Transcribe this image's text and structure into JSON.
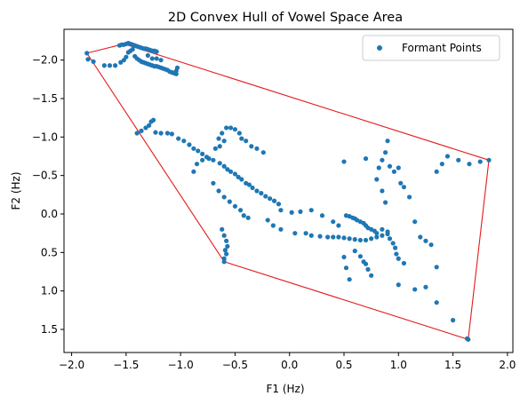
{
  "chart_data": {
    "type": "scatter",
    "title": "2D Convex Hull of Vowel Space Area",
    "xlabel": "F1 (Hz)",
    "ylabel": "F2 (Hz)",
    "xlim": [
      -2.07,
      2.05
    ],
    "ylim": [
      1.8,
      -2.4
    ],
    "y_inverted": true,
    "grid": false,
    "legend": {
      "placement": "top-right",
      "label": "Formant Points"
    },
    "x_ticks": [
      -2.0,
      -1.5,
      -1.0,
      -0.5,
      0.0,
      0.5,
      1.0,
      1.5,
      2.0
    ],
    "x_tick_labels": [
      "−2.0",
      "−1.5",
      "−1.0",
      "−0.5",
      "0.0",
      "0.5",
      "1.0",
      "1.5",
      "2.0"
    ],
    "y_ticks": [
      -2.0,
      -1.5,
      -1.0,
      -0.5,
      0.0,
      0.5,
      1.0,
      1.5
    ],
    "y_tick_labels": [
      "−2.0",
      "−1.5",
      "−1.0",
      "−0.5",
      "0.0",
      "0.5",
      "1.0",
      "1.5"
    ],
    "point_color": "#1f77b4",
    "hull_color": "#e31a1c",
    "points": [
      [
        -1.86,
        -2.09
      ],
      [
        -1.85,
        -2.01
      ],
      [
        -1.8,
        -1.98
      ],
      [
        -1.7,
        -1.93
      ],
      [
        -1.65,
        -1.93
      ],
      [
        -1.6,
        -1.93
      ],
      [
        -1.55,
        -1.97
      ],
      [
        -1.52,
        -2.0
      ],
      [
        -1.5,
        -2.04
      ],
      [
        -1.48,
        -2.1
      ],
      [
        -1.46,
        -2.12
      ],
      [
        -1.44,
        -2.14
      ],
      [
        -1.52,
        -2.2
      ],
      [
        -1.5,
        -2.21
      ],
      [
        -1.48,
        -2.22
      ],
      [
        -1.46,
        -2.21
      ],
      [
        -1.44,
        -2.2
      ],
      [
        -1.42,
        -2.19
      ],
      [
        -1.4,
        -2.18
      ],
      [
        -1.38,
        -2.17
      ],
      [
        -1.36,
        -2.16
      ],
      [
        -1.34,
        -2.15
      ],
      [
        -1.32,
        -2.15
      ],
      [
        -1.3,
        -2.14
      ],
      [
        -1.28,
        -2.13
      ],
      [
        -1.26,
        -2.12
      ],
      [
        -1.24,
        -2.12
      ],
      [
        -1.22,
        -2.11
      ],
      [
        -1.56,
        -2.19
      ],
      [
        -1.54,
        -2.2
      ],
      [
        -1.42,
        -2.05
      ],
      [
        -1.4,
        -2.02
      ],
      [
        -1.38,
        -2.0
      ],
      [
        -1.36,
        -1.98
      ],
      [
        -1.34,
        -1.97
      ],
      [
        -1.32,
        -1.96
      ],
      [
        -1.3,
        -1.95
      ],
      [
        -1.28,
        -1.94
      ],
      [
        -1.26,
        -1.93
      ],
      [
        -1.24,
        -1.92
      ],
      [
        -1.22,
        -1.92
      ],
      [
        -1.2,
        -1.91
      ],
      [
        -1.18,
        -1.9
      ],
      [
        -1.16,
        -1.89
      ],
      [
        -1.14,
        -1.88
      ],
      [
        -1.12,
        -1.87
      ],
      [
        -1.1,
        -1.85
      ],
      [
        -1.08,
        -1.84
      ],
      [
        -1.06,
        -1.83
      ],
      [
        -1.04,
        -1.82
      ],
      [
        -1.04,
        -1.86
      ],
      [
        -1.03,
        -1.9
      ],
      [
        -1.3,
        -2.06
      ],
      [
        -1.26,
        -2.02
      ],
      [
        -1.22,
        -2.02
      ],
      [
        -1.18,
        -2.0
      ],
      [
        -1.4,
        -1.05
      ],
      [
        -1.36,
        -1.08
      ],
      [
        -1.32,
        -1.12
      ],
      [
        -1.29,
        -1.15
      ],
      [
        -1.27,
        -1.2
      ],
      [
        -1.25,
        -1.22
      ],
      [
        -1.23,
        -1.06
      ],
      [
        -1.18,
        -1.05
      ],
      [
        -1.12,
        -1.05
      ],
      [
        -1.08,
        -1.04
      ],
      [
        -1.02,
        -0.98
      ],
      [
        -0.97,
        -0.95
      ],
      [
        -0.92,
        -0.9
      ],
      [
        -0.88,
        -0.85
      ],
      [
        -0.84,
        -0.82
      ],
      [
        -0.8,
        -0.78
      ],
      [
        -0.76,
        -0.74
      ],
      [
        -0.7,
        -0.7
      ],
      [
        -0.64,
        -0.66
      ],
      [
        -0.6,
        -0.62
      ],
      [
        -0.57,
        -0.58
      ],
      [
        -0.54,
        -0.55
      ],
      [
        -0.5,
        -0.52
      ],
      [
        -0.47,
        -0.48
      ],
      [
        -0.44,
        -0.45
      ],
      [
        -0.4,
        -0.4
      ],
      [
        -0.37,
        -0.38
      ],
      [
        -0.34,
        -0.34
      ],
      [
        -0.3,
        -0.3
      ],
      [
        -0.26,
        -0.27
      ],
      [
        -0.22,
        -0.23
      ],
      [
        -0.18,
        -0.2
      ],
      [
        -0.14,
        -0.17
      ],
      [
        -0.1,
        -0.13
      ],
      [
        -0.65,
        -0.98
      ],
      [
        -0.62,
        -1.05
      ],
      [
        -0.58,
        -1.12
      ],
      [
        -0.54,
        -1.12
      ],
      [
        -0.5,
        -1.1
      ],
      [
        -0.46,
        -1.05
      ],
      [
        -0.44,
        -0.98
      ],
      [
        -0.4,
        -0.95
      ],
      [
        -0.35,
        -0.88
      ],
      [
        -0.3,
        -0.85
      ],
      [
        -0.24,
        -0.8
      ],
      [
        -0.7,
        -0.4
      ],
      [
        -0.65,
        -0.3
      ],
      [
        -0.6,
        -0.22
      ],
      [
        -0.55,
        -0.16
      ],
      [
        -0.5,
        -0.1
      ],
      [
        -0.45,
        -0.05
      ],
      [
        -0.42,
        0.02
      ],
      [
        -0.38,
        0.05
      ],
      [
        -0.62,
        0.2
      ],
      [
        -0.6,
        0.28
      ],
      [
        -0.58,
        0.35
      ],
      [
        -0.57,
        0.42
      ],
      [
        -0.59,
        0.47
      ],
      [
        -0.58,
        0.52
      ],
      [
        -0.6,
        0.58
      ],
      [
        -0.6,
        0.62
      ],
      [
        -0.88,
        -0.55
      ],
      [
        -0.85,
        -0.65
      ],
      [
        -0.8,
        -0.7
      ],
      [
        -0.74,
        -0.72
      ],
      [
        -0.68,
        -0.85
      ],
      [
        -0.64,
        -0.88
      ],
      [
        -0.6,
        -0.95
      ],
      [
        -0.2,
        0.08
      ],
      [
        -0.15,
        0.15
      ],
      [
        -0.08,
        0.2
      ],
      [
        0.05,
        0.25
      ],
      [
        0.15,
        0.25
      ],
      [
        0.2,
        0.28
      ],
      [
        0.28,
        0.29
      ],
      [
        0.35,
        0.3
      ],
      [
        0.4,
        0.3
      ],
      [
        0.45,
        0.3
      ],
      [
        0.5,
        0.31
      ],
      [
        0.55,
        0.32
      ],
      [
        0.6,
        0.33
      ],
      [
        0.65,
        0.34
      ],
      [
        0.7,
        0.34
      ],
      [
        0.75,
        0.32
      ],
      [
        0.8,
        0.3
      ],
      [
        0.85,
        0.28
      ],
      [
        0.9,
        0.26
      ],
      [
        0.92,
        0.32
      ],
      [
        0.95,
        0.38
      ],
      [
        0.97,
        0.44
      ],
      [
        0.98,
        0.52
      ],
      [
        1.0,
        0.58
      ],
      [
        1.05,
        0.64
      ],
      [
        -0.08,
        -0.05
      ],
      [
        0.02,
        -0.02
      ],
      [
        0.1,
        -0.03
      ],
      [
        0.2,
        -0.05
      ],
      [
        0.3,
        0.02
      ],
      [
        0.4,
        0.1
      ],
      [
        0.45,
        0.15
      ],
      [
        0.52,
        0.02
      ],
      [
        0.55,
        0.03
      ],
      [
        0.58,
        0.05
      ],
      [
        0.6,
        0.06
      ],
      [
        0.62,
        0.08
      ],
      [
        0.65,
        0.1
      ],
      [
        0.68,
        0.12
      ],
      [
        0.7,
        0.15
      ],
      [
        0.72,
        0.18
      ],
      [
        0.75,
        0.2
      ],
      [
        0.78,
        0.22
      ],
      [
        0.8,
        0.25
      ],
      [
        0.6,
        0.48
      ],
      [
        0.65,
        0.55
      ],
      [
        0.68,
        0.62
      ],
      [
        0.7,
        0.65
      ],
      [
        0.72,
        0.72
      ],
      [
        0.75,
        0.8
      ],
      [
        0.55,
        0.85
      ],
      [
        0.52,
        0.7
      ],
      [
        0.5,
        0.56
      ],
      [
        0.85,
        0.2
      ],
      [
        0.9,
        0.23
      ],
      [
        0.88,
        -0.15
      ],
      [
        0.85,
        -0.3
      ],
      [
        0.8,
        -0.45
      ],
      [
        0.82,
        -0.6
      ],
      [
        0.85,
        -0.7
      ],
      [
        0.88,
        -0.8
      ],
      [
        0.9,
        -0.95
      ],
      [
        0.92,
        -0.62
      ],
      [
        0.96,
        -0.55
      ],
      [
        1.0,
        -0.6
      ],
      [
        1.02,
        -0.4
      ],
      [
        1.05,
        -0.35
      ],
      [
        1.1,
        -0.22
      ],
      [
        1.15,
        0.1
      ],
      [
        1.2,
        0.3
      ],
      [
        1.25,
        0.35
      ],
      [
        1.3,
        0.4
      ],
      [
        1.35,
        -0.55
      ],
      [
        1.4,
        -0.65
      ],
      [
        1.45,
        -0.75
      ],
      [
        1.55,
        -0.7
      ],
      [
        1.65,
        -0.65
      ],
      [
        1.75,
        -0.68
      ],
      [
        1.83,
        -0.7
      ],
      [
        0.5,
        -0.68
      ],
      [
        0.7,
        -0.72
      ],
      [
        1.0,
        0.92
      ],
      [
        1.15,
        0.98
      ],
      [
        1.25,
        0.95
      ],
      [
        1.35,
        1.15
      ],
      [
        1.35,
        0.69
      ],
      [
        1.5,
        1.38
      ],
      [
        1.63,
        1.62
      ],
      [
        1.64,
        1.63
      ]
    ],
    "hull": [
      [
        -1.86,
        -2.09
      ],
      [
        -1.52,
        -2.21
      ],
      [
        1.83,
        -0.7
      ],
      [
        1.64,
        1.63
      ],
      [
        -0.6,
        0.62
      ],
      [
        -1.86,
        -2.09
      ]
    ]
  }
}
